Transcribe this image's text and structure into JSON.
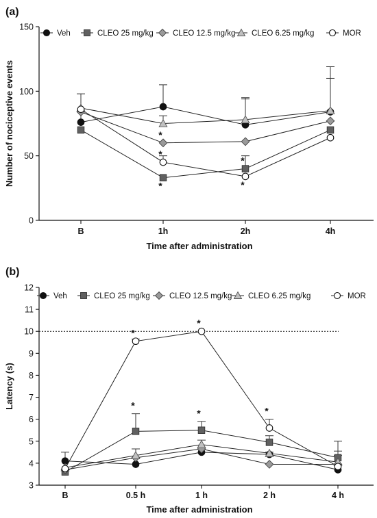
{
  "chart_data": [
    {
      "panel_label": "(a)",
      "type": "line",
      "xlabel": "Time after administration",
      "ylabel": "Number of nociceptive events",
      "categories": [
        "B",
        "1h",
        "2h",
        "4h"
      ],
      "ylim": [
        0,
        150
      ],
      "yticks": [
        0,
        50,
        100,
        150
      ],
      "legend_position": "top",
      "series": [
        {
          "name": "Veh",
          "marker": "circle",
          "fill": "#111111",
          "values": [
            76,
            88,
            74,
            84
          ],
          "errors": [
            22,
            17,
            20,
            26
          ]
        },
        {
          "name": "CLEO 25 mg/kg",
          "marker": "square",
          "fill": "#606060",
          "values": [
            70,
            33,
            40,
            70
          ],
          "errors": [
            0,
            0,
            10,
            0
          ]
        },
        {
          "name": "CLEO 12.5 mg/kg",
          "marker": "diamond",
          "fill": "#9a9a9a",
          "values": [
            84,
            60,
            61,
            77
          ],
          "errors": [
            0,
            0,
            0,
            0
          ]
        },
        {
          "name": "CLEO 6.25 mg/kg",
          "marker": "triangle",
          "fill": "#c0c0c0",
          "values": [
            87,
            75,
            78,
            85
          ],
          "errors": [
            0,
            6,
            17,
            34
          ]
        },
        {
          "name": "MOR",
          "marker": "circle-open",
          "fill": "#ffffff",
          "values": [
            86,
            45,
            34,
            64
          ],
          "errors": [
            0,
            5,
            0,
            0
          ]
        }
      ],
      "significance": [
        {
          "category": "1h",
          "value": 60,
          "label": "*"
        },
        {
          "category": "1h",
          "value": 45,
          "label": "*"
        },
        {
          "category": "1h",
          "value": 33,
          "label": "*",
          "below": true
        },
        {
          "category": "2h",
          "value": 40,
          "label": "*"
        },
        {
          "category": "2h",
          "value": 34,
          "label": "*",
          "below": true
        }
      ]
    },
    {
      "panel_label": "(b)",
      "type": "line",
      "xlabel": "Time after administration",
      "ylabel": "Latency (s)",
      "categories": [
        "B",
        "0.5 h",
        "1 h",
        "2 h",
        "4 h"
      ],
      "ylim": [
        3,
        12
      ],
      "yticks": [
        3,
        4,
        5,
        6,
        7,
        8,
        9,
        10,
        11,
        12
      ],
      "cutoff": 10,
      "legend_position": "top",
      "series": [
        {
          "name": "Veh",
          "marker": "circle",
          "fill": "#111111",
          "values": [
            4.1,
            3.95,
            4.5,
            4.4,
            3.7
          ],
          "errors": [
            0.4,
            0,
            0.2,
            0.1,
            0
          ]
        },
        {
          "name": "CLEO 25 mg/kg",
          "marker": "square",
          "fill": "#606060",
          "values": [
            3.6,
            5.45,
            5.5,
            4.95,
            4.25
          ],
          "errors": [
            0,
            0.8,
            0.4,
            0.3,
            0.3
          ]
        },
        {
          "name": "CLEO 12.5 mg/kg",
          "marker": "diamond",
          "fill": "#9a9a9a",
          "values": [
            3.7,
            4.25,
            4.65,
            3.95,
            3.95
          ],
          "errors": [
            0,
            0,
            0,
            0,
            0
          ]
        },
        {
          "name": "CLEO 6.25 mg/kg",
          "marker": "triangle",
          "fill": "#c0c0c0",
          "values": [
            3.8,
            4.35,
            4.85,
            4.45,
            4.05
          ],
          "errors": [
            0,
            0.3,
            0.2,
            0,
            0.95
          ]
        },
        {
          "name": "MOR",
          "marker": "circle-open",
          "fill": "#ffffff",
          "values": [
            3.75,
            9.55,
            10.0,
            5.6,
            3.85
          ],
          "errors": [
            0,
            0.1,
            0,
            0.4,
            0.5
          ]
        }
      ],
      "significance": [
        {
          "category": "0.5 h",
          "value": 9.55,
          "label": "*"
        },
        {
          "category": "0.5 h",
          "value": 6.25,
          "label": "*"
        },
        {
          "category": "1 h",
          "value": 10.0,
          "label": "*"
        },
        {
          "category": "1 h",
          "value": 5.9,
          "label": "*"
        },
        {
          "category": "2 h",
          "value": 6.0,
          "label": "*"
        }
      ]
    }
  ]
}
